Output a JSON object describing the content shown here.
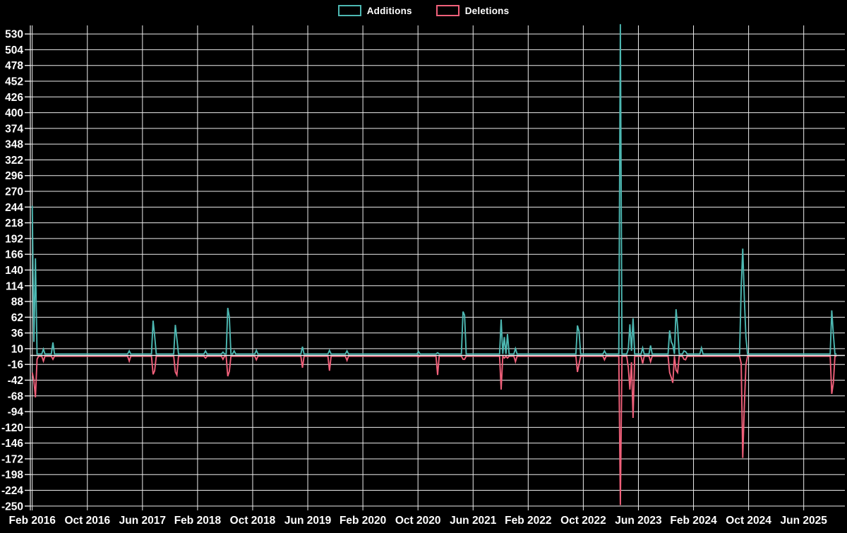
{
  "chart": {
    "background_color": "#000000",
    "grid_color": "#ededed",
    "text_color": "#ffffff",
    "legend": {
      "items": [
        {
          "label": "Additions",
          "color": "#4DB8B2"
        },
        {
          "label": "Deletions",
          "color": "#F0607A"
        }
      ]
    }
  },
  "chart_data": {
    "type": "line",
    "x_axis": {
      "unit": "week",
      "range_weeks": 507,
      "tick_labels": [
        "Feb 2016",
        "Oct 2016",
        "Jun 2017",
        "Feb 2018",
        "Oct 2018",
        "Jun 2019",
        "Feb 2020",
        "Oct 2020",
        "Jun 2021",
        "Feb 2022",
        "Oct 2022",
        "Jun 2023",
        "Feb 2024",
        "Oct 2024",
        "Jun 2025"
      ]
    },
    "y_axis": {
      "min": -250,
      "max": 530,
      "tick_step": 26,
      "ticks": [
        530,
        504,
        478,
        452,
        426,
        400,
        374,
        348,
        322,
        296,
        270,
        244,
        218,
        192,
        166,
        140,
        114,
        88,
        62,
        36,
        10,
        -16,
        -42,
        -68,
        -94,
        -120,
        -146,
        -172,
        -198,
        -224,
        -250
      ]
    },
    "series": [
      {
        "name": "Additions",
        "color": "#4DB8B2"
      },
      {
        "name": "Deletions",
        "color": "#F0607A"
      }
    ],
    "baseline": 0,
    "note": "weeks not listed in events have additions 0 and deletions 0",
    "events": [
      {
        "week": 0,
        "additions": 245,
        "deletions": -27
      },
      {
        "week": 1,
        "additions": 20,
        "deletions": -40
      },
      {
        "week": 2,
        "additions": 158,
        "deletions": -68
      },
      {
        "week": 3,
        "additions": 0,
        "deletions": -5
      },
      {
        "week": 7,
        "additions": 8,
        "deletions": -8
      },
      {
        "week": 13,
        "additions": 19,
        "deletions": -5
      },
      {
        "week": 61,
        "additions": 5,
        "deletions": -8
      },
      {
        "week": 76,
        "additions": 55,
        "deletions": -30
      },
      {
        "week": 77,
        "additions": 30,
        "deletions": -24
      },
      {
        "week": 90,
        "additions": 48,
        "deletions": -26
      },
      {
        "week": 91,
        "additions": 25,
        "deletions": -31
      },
      {
        "week": 109,
        "additions": 5,
        "deletions": -3
      },
      {
        "week": 120,
        "additions": 3,
        "deletions": -5
      },
      {
        "week": 123,
        "additions": 76,
        "deletions": -33
      },
      {
        "week": 124,
        "additions": 61,
        "deletions": -25
      },
      {
        "week": 127,
        "additions": 5,
        "deletions": 0
      },
      {
        "week": 141,
        "additions": 6,
        "deletions": -6
      },
      {
        "week": 170,
        "additions": 12,
        "deletions": -19
      },
      {
        "week": 187,
        "additions": 6,
        "deletions": -24
      },
      {
        "week": 198,
        "additions": 5,
        "deletions": -7
      },
      {
        "week": 243,
        "additions": 4,
        "deletions": -1
      },
      {
        "week": 255,
        "additions": 2,
        "deletions": -31
      },
      {
        "week": 271,
        "additions": 70,
        "deletions": -5
      },
      {
        "week": 272,
        "additions": 64,
        "deletions": -5
      },
      {
        "week": 295,
        "additions": 57,
        "deletions": -55
      },
      {
        "week": 297,
        "additions": 28,
        "deletions": -3
      },
      {
        "week": 299,
        "additions": 33,
        "deletions": -3
      },
      {
        "week": 304,
        "additions": 9,
        "deletions": -9
      },
      {
        "week": 343,
        "additions": 47,
        "deletions": -26
      },
      {
        "week": 344,
        "additions": 37,
        "deletions": -13
      },
      {
        "week": 360,
        "additions": 5,
        "deletions": -6
      },
      {
        "week": 370,
        "additions": 545,
        "deletions": -246
      },
      {
        "week": 375,
        "additions": 8,
        "deletions": -19
      },
      {
        "week": 376,
        "additions": 49,
        "deletions": -55
      },
      {
        "week": 377,
        "additions": 5,
        "deletions": -10
      },
      {
        "week": 378,
        "additions": 59,
        "deletions": -102
      },
      {
        "week": 384,
        "additions": 10,
        "deletions": -12
      },
      {
        "week": 389,
        "additions": 14,
        "deletions": -9
      },
      {
        "week": 401,
        "additions": 39,
        "deletions": -27
      },
      {
        "week": 402,
        "additions": 20,
        "deletions": -35
      },
      {
        "week": 403,
        "additions": 15,
        "deletions": -44
      },
      {
        "week": 405,
        "additions": 74,
        "deletions": -23
      },
      {
        "week": 406,
        "additions": 45,
        "deletions": -27
      },
      {
        "week": 410,
        "additions": 5,
        "deletions": -5
      },
      {
        "week": 411,
        "additions": 4,
        "deletions": -6
      },
      {
        "week": 421,
        "additions": 10,
        "deletions": 0
      },
      {
        "week": 446,
        "additions": 109,
        "deletions": -12
      },
      {
        "week": 447,
        "additions": 174,
        "deletions": -168
      },
      {
        "week": 448,
        "additions": 90,
        "deletions": -80
      },
      {
        "week": 449,
        "additions": 28,
        "deletions": -14
      },
      {
        "week": 503,
        "additions": 72,
        "deletions": -62
      },
      {
        "week": 504,
        "additions": 32,
        "deletions": -44
      }
    ]
  }
}
